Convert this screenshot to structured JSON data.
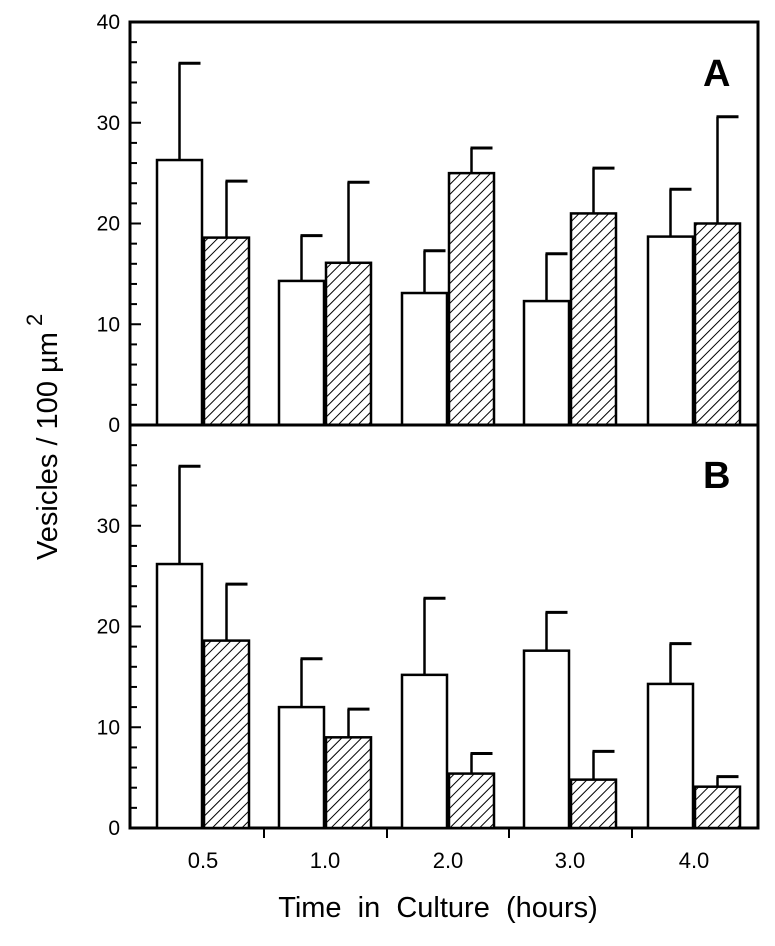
{
  "chart_data": [
    {
      "type": "bar",
      "panel_label": "A",
      "categories": [
        "0.5",
        "1.0",
        "2.0",
        "3.0",
        "4.0"
      ],
      "series": [
        {
          "fill": "open",
          "values": [
            26.3,
            14.3,
            13.1,
            12.3,
            18.7
          ],
          "errors": [
            9.6,
            4.5,
            4.2,
            4.7,
            4.7
          ]
        },
        {
          "fill": "hatched",
          "values": [
            18.6,
            16.1,
            25.0,
            21.0,
            20.0
          ],
          "errors": [
            5.6,
            8.0,
            2.5,
            4.5,
            10.6
          ]
        }
      ],
      "ylim": [
        0,
        40
      ],
      "yticks": [
        "0",
        "10",
        "20",
        "30",
        "40"
      ]
    },
    {
      "type": "bar",
      "panel_label": "B",
      "categories": [
        "0.5",
        "1.0",
        "2.0",
        "3.0",
        "4.0"
      ],
      "series": [
        {
          "fill": "open",
          "values": [
            26.2,
            12.0,
            15.2,
            17.6,
            14.3
          ],
          "errors": [
            9.7,
            4.8,
            7.6,
            3.8,
            4.0
          ]
        },
        {
          "fill": "hatched",
          "values": [
            18.6,
            9.0,
            5.4,
            4.8,
            4.1
          ],
          "errors": [
            5.6,
            2.8,
            2.0,
            2.8,
            1.0
          ]
        }
      ],
      "ylim": [
        0,
        40
      ],
      "yticks": [
        "0",
        "10",
        "20",
        "30"
      ]
    }
  ],
  "axes": {
    "ylabel": "Vesicles / 100 µm",
    "ylabel_superscript": "2",
    "xlabel": "Time  in  Culture  (hours)"
  },
  "colors": {
    "ink": "#000000",
    "paper": "#ffffff"
  }
}
